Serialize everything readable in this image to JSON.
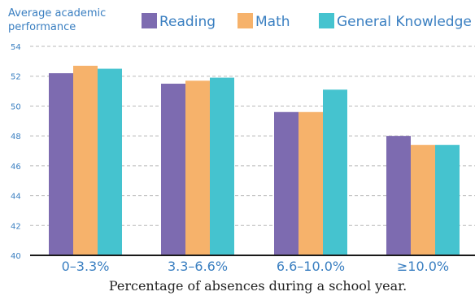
{
  "chart_data": {
    "type": "bar",
    "ylabel": [
      "Average academic",
      "performance"
    ],
    "xlabel": "Percentage of absences during a school year.",
    "categories": [
      "0–3.3%",
      "3.3–6.6%",
      "6.6–10.0%",
      "≥10.0%"
    ],
    "ylim": [
      40,
      54
    ],
    "yticks": [
      40,
      42,
      44,
      46,
      48,
      50,
      52,
      54
    ],
    "grid": "horizontal dashed",
    "legend_position": "top",
    "series": [
      {
        "name": "Reading",
        "color": "#7d6bb0",
        "values": [
          52.2,
          51.5,
          49.6,
          48.0
        ]
      },
      {
        "name": "Math",
        "color": "#f6b26b",
        "values": [
          52.7,
          51.7,
          49.6,
          47.4
        ]
      },
      {
        "name": "General Knowledge",
        "color": "#45c3cf",
        "values": [
          52.5,
          51.9,
          51.1,
          47.4
        ]
      }
    ]
  }
}
